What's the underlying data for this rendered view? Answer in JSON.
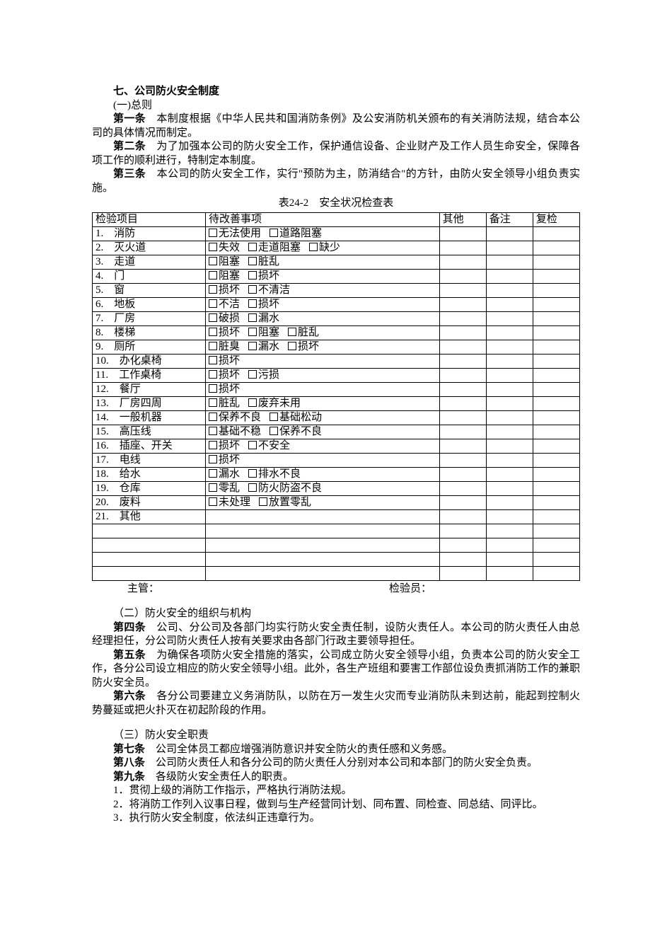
{
  "title": "七、公司防火安全制度",
  "sub1": "(一)总则",
  "articles": {
    "a1_label": "第一条",
    "a1_text": "　本制度根据《中华人民共和国消防条例》及公安消防机关颁布的有关消防法规，结合本公司的具体情况而制定。",
    "a2_label": "第二条",
    "a2_text": "　为了加强本公司的防火安全工作，保护通信设备、企业财产及工作人员生命安全，保障各项工作的顺利进行，特制定本制度。",
    "a3_label": "第三条",
    "a3_text": "　本公司的防火安全工作，实行\"预防为主，防消结合\"的方针，由防火安全领导小组负责实施。"
  },
  "table_caption": "表24-2　安全状况检查表",
  "headers": {
    "c1": "检验项目",
    "c2": "待改善事项",
    "c3": "其他",
    "c4": "备注",
    "c5": "复检"
  },
  "rows": [
    {
      "item": "1.　消防",
      "checks": [
        "无法使用",
        "道路阻塞"
      ]
    },
    {
      "item": "2.　灭火道",
      "checks": [
        "失效",
        "走道阻塞",
        "缺少"
      ]
    },
    {
      "item": "3.　走道",
      "checks": [
        "阻塞",
        "脏乱"
      ]
    },
    {
      "item": "4.　门",
      "checks": [
        "阻塞",
        "损坏"
      ]
    },
    {
      "item": "5.　窗",
      "checks": [
        "损坏",
        "不清洁"
      ]
    },
    {
      "item": "6.　地板",
      "checks": [
        "不洁",
        "损坏"
      ]
    },
    {
      "item": "7.　厂房",
      "checks": [
        "破损",
        "漏水"
      ]
    },
    {
      "item": "8.　楼梯",
      "checks": [
        "损坏",
        "阻塞",
        "脏乱"
      ]
    },
    {
      "item": "9.　厕所",
      "checks": [
        "脏臭",
        "漏水",
        "损坏"
      ]
    },
    {
      "item": "10.　办化桌椅",
      "checks": [
        "损坏"
      ]
    },
    {
      "item": "11.　工作桌椅",
      "checks": [
        "损坏",
        "污损"
      ]
    },
    {
      "item": "12.　餐厅",
      "checks": [
        "损坏"
      ]
    },
    {
      "item": "13.　厂房四周",
      "checks": [
        "脏乱",
        "废弃未用"
      ]
    },
    {
      "item": "14.　一般机器",
      "checks": [
        "保养不良",
        "基础松动"
      ]
    },
    {
      "item": "15.　高压线",
      "checks": [
        "基础不稳",
        "保养不良"
      ]
    },
    {
      "item": "16.　插座、开关",
      "checks": [
        "损坏",
        "不安全"
      ]
    },
    {
      "item": "17.　电线",
      "checks": [
        "损坏"
      ]
    },
    {
      "item": "18.　给水",
      "checks": [
        "漏水",
        "排水不良"
      ]
    },
    {
      "item": "19.　仓库",
      "checks": [
        "零乱",
        "防火防盗不良"
      ]
    },
    {
      "item": "20.　废料",
      "checks": [
        "未处理",
        "放置零乱"
      ]
    },
    {
      "item": "21.　其他",
      "checks": []
    }
  ],
  "sign": {
    "left": "主管：",
    "right": "检验员："
  },
  "sub2": "（二）防火安全的组织与机构",
  "articles2": {
    "a4_label": "第四条",
    "a4_text": "　公司、分公司及各部门均实行防火安全责任制，设防火责任人。本公司的防火责任人由总经理担任，分公司防火责任人按有关要求由各部门行政主要领导担任。",
    "a5_label": "第五条",
    "a5_text": "　为确保各项防火安全措施的落实，公司成立防火安全领导小组，负责本公司的防火安全工作，各分公司设立相应的防火安全领导小组。此外，各生产班组和要害工作部位设负责抓消防工作的兼职防火安全员。",
    "a6_label": "第六条",
    "a6_text": "　各分公司要建立义务消防队，以防在万一发生火灾而专业消防队未到达前，能起到控制火势蔓延或把火扑灭在初起阶段的作用。"
  },
  "sub3": "（三）防火安全职责",
  "articles3": {
    "a7_label": "第七条",
    "a7_text": "　公司全体员工都应增强消防意识并安全防火的责任感和义务感。",
    "a8_label": "第八条",
    "a8_text": "　公司防火责任人和各分公司的防火责任人分别对本公司和本部门的防火安全负责。",
    "a9_label": "第九条",
    "a9_text": "　各级防火安全责任人的职责。",
    "d1": "1．贯彻上级的消防工作指示，严格执行消防法规。",
    "d2": "2．将消防工作列入议事日程，做到与生产经营同计划、同布置、同检查、同总结、同评比。",
    "d3": "3．执行防火安全制度，依法纠正违章行为。"
  }
}
